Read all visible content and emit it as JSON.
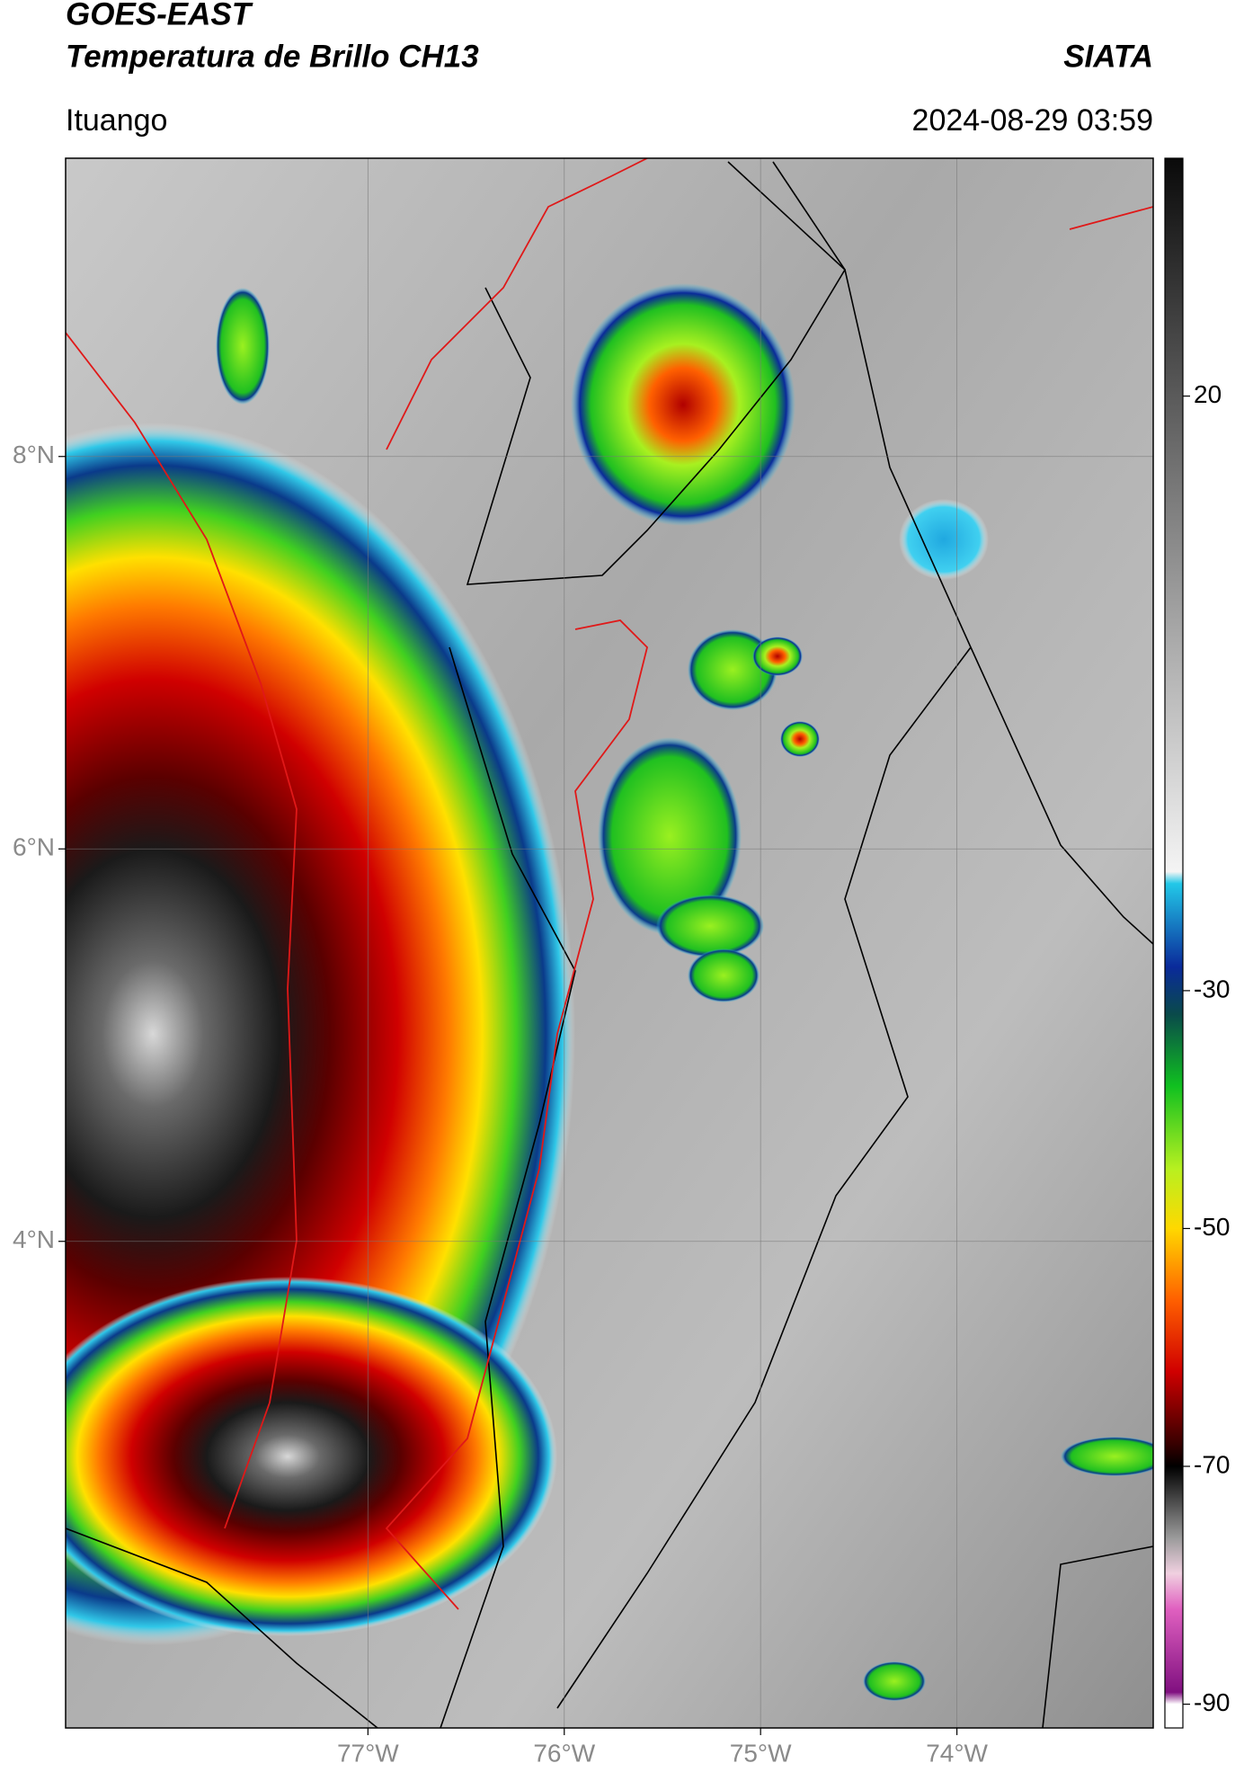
{
  "header": {
    "satellite": "GOES-EAST",
    "product": "Temperatura de Brillo CH13",
    "institution": "SIATA",
    "region": "Ituango",
    "datetime": "2024-08-29 03:59"
  },
  "map": {
    "lonlim": [
      -78.54,
      -73.0
    ],
    "latlim": [
      1.52,
      9.52
    ],
    "lonticks": [
      {
        "value": -77,
        "label": "77°W"
      },
      {
        "value": -76,
        "label": "76°W"
      },
      {
        "value": -75,
        "label": "75°W"
      },
      {
        "value": -74,
        "label": "74°W"
      }
    ],
    "latticks": [
      {
        "value": 8,
        "label": "8°N"
      },
      {
        "value": 6,
        "label": "6°N"
      },
      {
        "value": 4,
        "label": "4°N"
      }
    ],
    "grid": true
  },
  "colorbar": {
    "clim": [
      -92,
      40
    ],
    "ticks": [
      20,
      -30,
      -50,
      -70,
      -90
    ],
    "colormap": [
      {
        "value": 40,
        "color": "#0a0a0a"
      },
      {
        "value": 20,
        "color": "#5a5a5a"
      },
      {
        "value": 0,
        "color": "#a8a8a8"
      },
      {
        "value": -20,
        "color": "#f4f4f4"
      },
      {
        "value": -21,
        "color": "#22c8e8"
      },
      {
        "value": -28,
        "color": "#0a2a9a"
      },
      {
        "value": -32,
        "color": "#0a4a4a"
      },
      {
        "value": -38,
        "color": "#10c020"
      },
      {
        "value": -45,
        "color": "#b8f020"
      },
      {
        "value": -50,
        "color": "#ffd800"
      },
      {
        "value": -56,
        "color": "#ff6000"
      },
      {
        "value": -62,
        "color": "#d00000"
      },
      {
        "value": -68,
        "color": "#3a0000"
      },
      {
        "value": -70,
        "color": "#000000"
      },
      {
        "value": -76,
        "color": "#9a9a9a"
      },
      {
        "value": -79,
        "color": "#f0d0e0"
      },
      {
        "value": -82,
        "color": "#e060c0"
      },
      {
        "value": -89,
        "color": "#801080"
      },
      {
        "value": -90,
        "color": "#ffffff"
      }
    ]
  }
}
